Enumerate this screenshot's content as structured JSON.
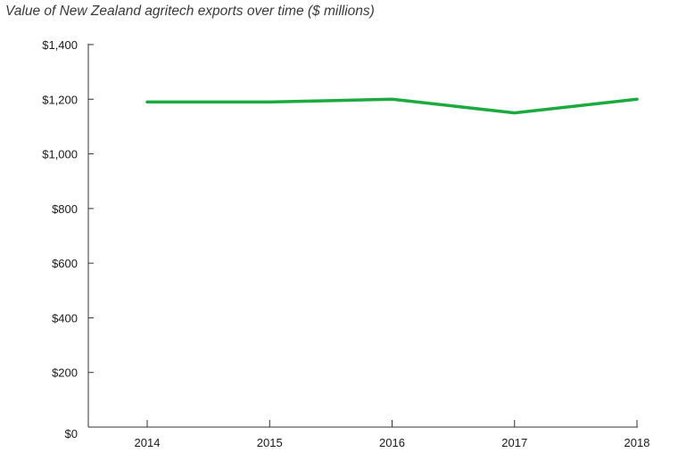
{
  "chart_data": {
    "type": "line",
    "title": "Value of New Zealand agritech exports over time ($ millions)",
    "xlabel": "",
    "ylabel": "",
    "categories": [
      "2014",
      "2015",
      "2016",
      "2017",
      "2018"
    ],
    "series": [
      {
        "values": [
          1190,
          1190,
          1200,
          1150,
          1200
        ],
        "color": "#1aaa3e"
      }
    ],
    "ylim": [
      0,
      1400
    ],
    "yticks": [
      0,
      200,
      400,
      600,
      800,
      1000,
      1200,
      1400
    ],
    "ytick_labels": [
      "$0",
      "$200",
      "$400",
      "$600",
      "$800",
      "$1,000",
      "$1,200",
      "$1,400"
    ],
    "grid": false,
    "legend": "none"
  }
}
